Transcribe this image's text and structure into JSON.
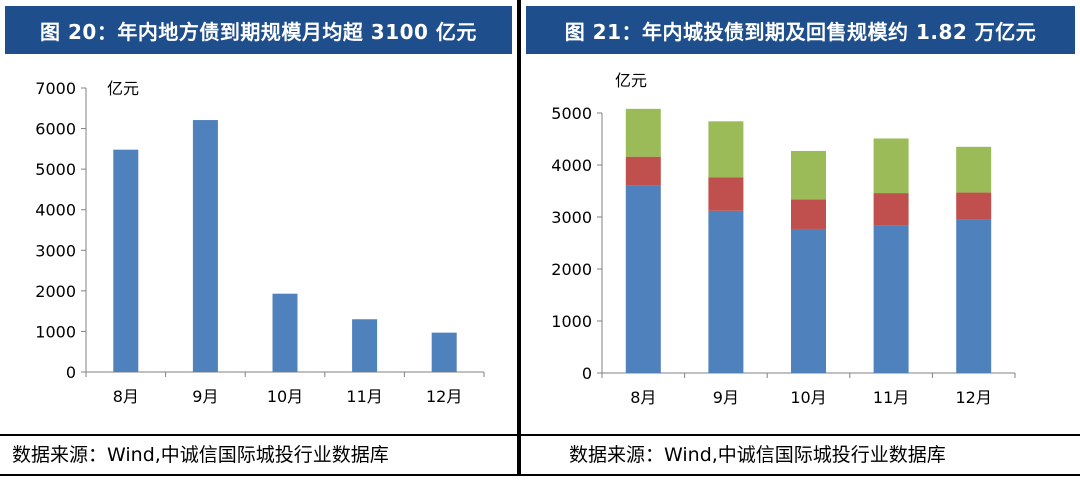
{
  "panels": [
    {
      "title": "图 20：年内地方债到期规模月均超 3100 亿元",
      "source": "数据来源：Wind,中诚信国际城投行业数据库"
    },
    {
      "title": "图 21：年内城投债到期及回售规模约 1.82 万亿元",
      "source": "数据来源：Wind,中诚信国际城投行业数据库"
    }
  ],
  "chart_data": [
    {
      "type": "bar",
      "ylabel": "亿元",
      "categories": [
        "8月",
        "9月",
        "10月",
        "11月",
        "12月"
      ],
      "values": [
        5480,
        6210,
        1930,
        1300,
        970
      ],
      "ylim": [
        0,
        7000
      ],
      "yticks": [
        0,
        1000,
        2000,
        3000,
        4000,
        5000,
        6000,
        7000
      ],
      "colors": [
        "#4f81bd"
      ],
      "grid": false
    },
    {
      "type": "bar",
      "stacked": true,
      "ylabel": "亿元",
      "categories": [
        "8月",
        "9月",
        "10月",
        "11月",
        "12月"
      ],
      "series": [
        {
          "values": [
            3600,
            3120,
            2770,
            2830,
            2950
          ],
          "color": "#4f81bd"
        },
        {
          "values": [
            560,
            640,
            570,
            630,
            520
          ],
          "color": "#c0504d"
        },
        {
          "values": [
            920,
            1080,
            930,
            1050,
            880
          ],
          "color": "#9bbb59"
        }
      ],
      "ylim": [
        0,
        5000
      ],
      "yticks": [
        0,
        1000,
        2000,
        3000,
        4000,
        5000
      ],
      "grid": false
    }
  ]
}
